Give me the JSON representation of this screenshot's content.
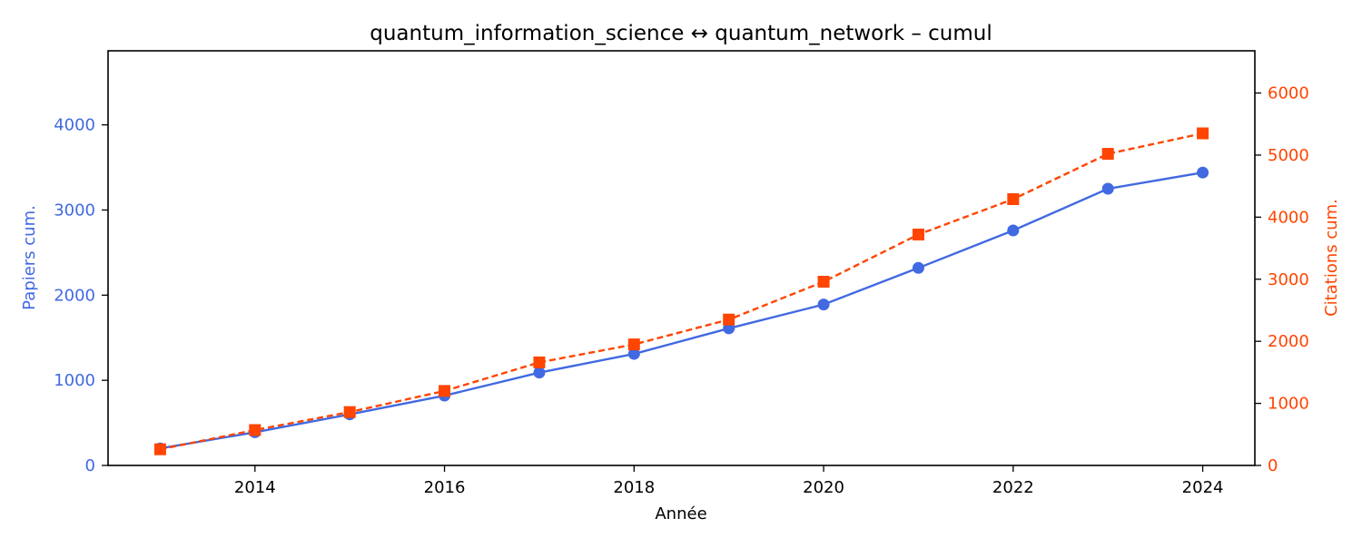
{
  "chart_data": {
    "type": "line",
    "title": "quantum_information_science  ↔  quantum_network  –  cumul",
    "xlabel": "Année",
    "ylabel_left": "Papiers cum.",
    "ylabel_right": "Citations cum.",
    "x": [
      2013,
      2014,
      2015,
      2016,
      2017,
      2018,
      2019,
      2020,
      2021,
      2022,
      2023,
      2024
    ],
    "xlim": [
      2012.45,
      2024.55
    ],
    "xticks": [
      2014,
      2016,
      2018,
      2020,
      2022,
      2024
    ],
    "ylim_left": [
      0,
      4870
    ],
    "yticks_left": [
      0,
      1000,
      2000,
      3000,
      4000
    ],
    "ylim_right": [
      0,
      6680
    ],
    "yticks_right": [
      0,
      1000,
      2000,
      3000,
      4000,
      5000,
      6000
    ],
    "grid": false,
    "series": [
      {
        "axis": "left",
        "color": "#4169E1",
        "line_style": "solid",
        "marker": "circle",
        "values": [
          200,
          390,
          600,
          820,
          1090,
          1310,
          1610,
          1890,
          2320,
          2760,
          3250,
          3440
        ]
      },
      {
        "axis": "right",
        "color": "#FF4500",
        "line_style": "dashed",
        "marker": "square",
        "values": [
          260,
          570,
          860,
          1200,
          1660,
          1950,
          2350,
          2960,
          3720,
          4290,
          5020,
          5350
        ]
      }
    ]
  }
}
